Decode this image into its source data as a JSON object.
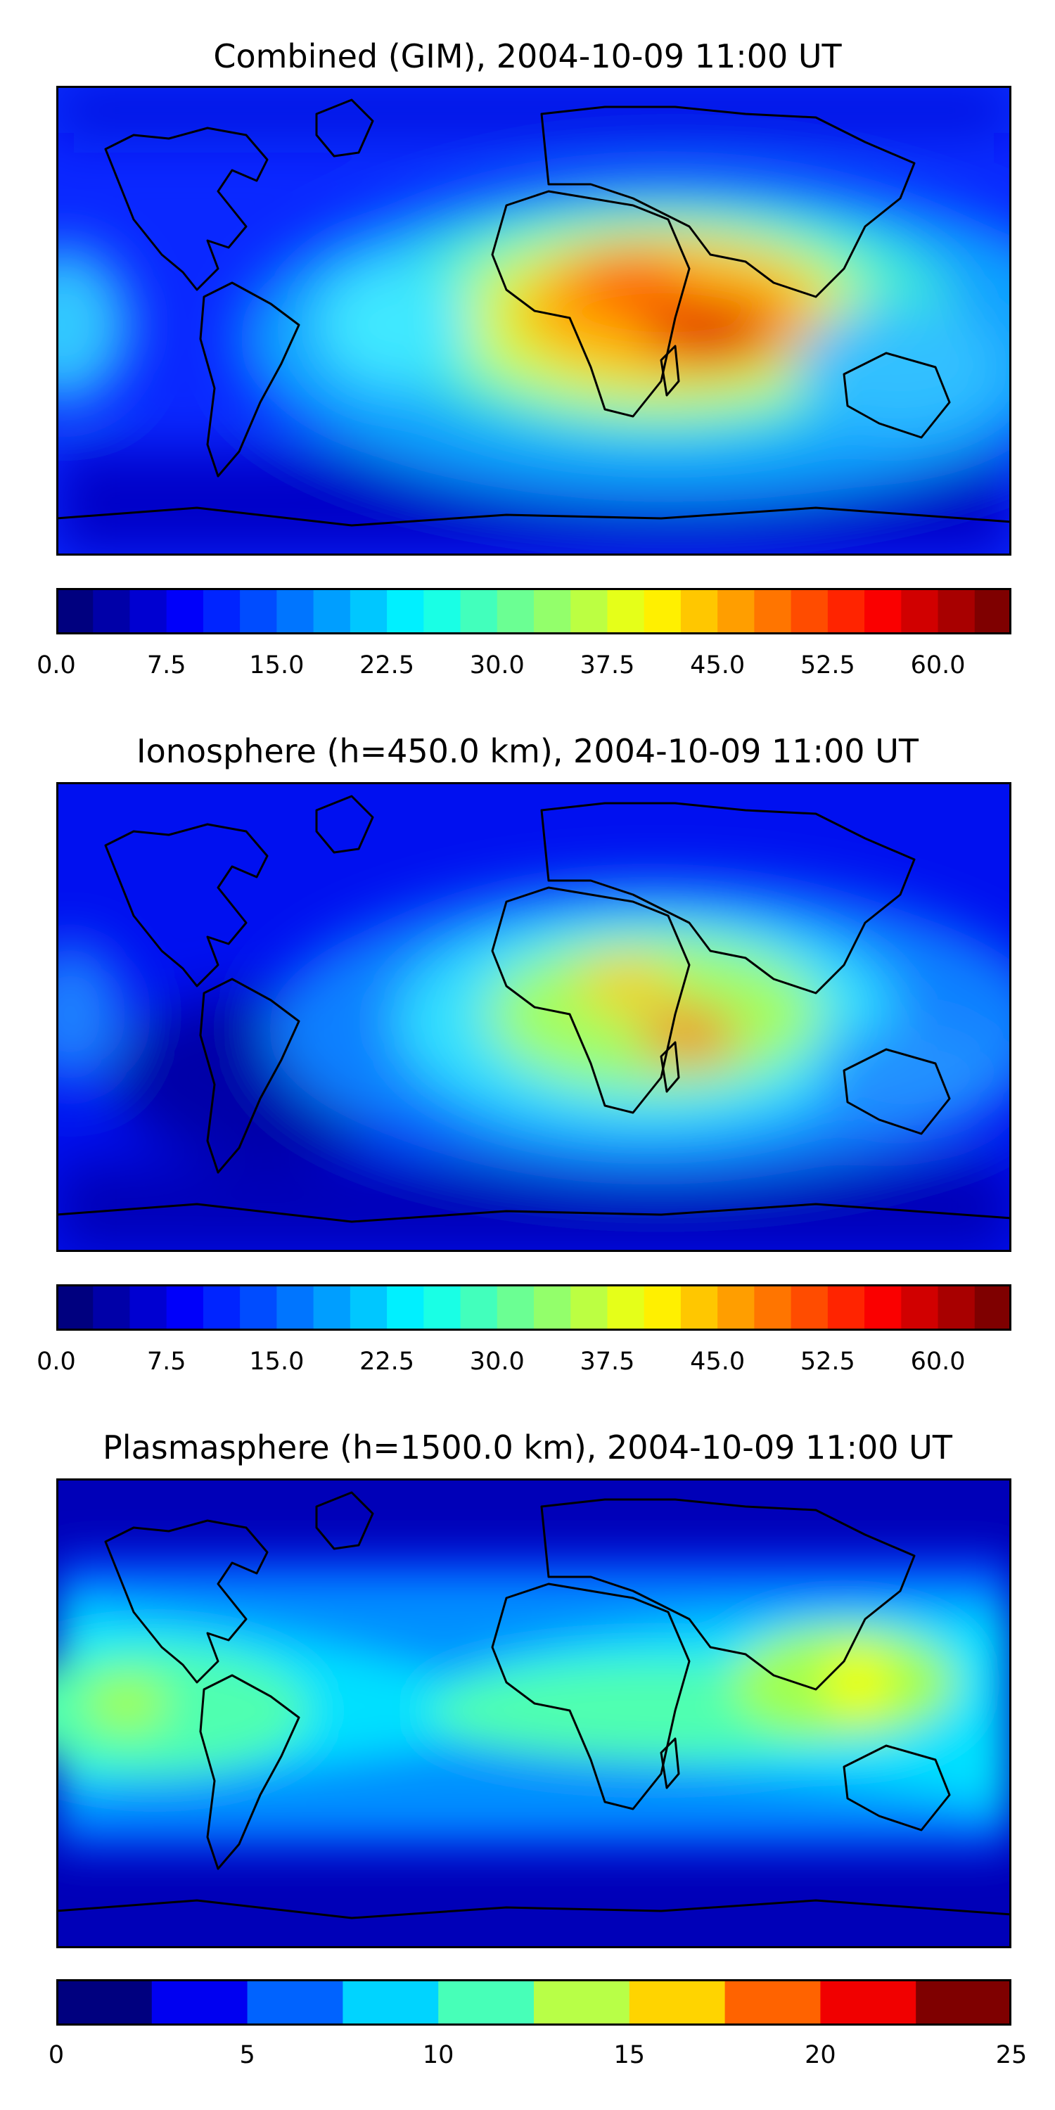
{
  "panels": [
    {
      "title": "Combined (GIM), 2004-10-09 11:00 UT",
      "colorbar": {
        "min": 0,
        "max": 65,
        "levels": 26,
        "tick_labels": [
          "0.0",
          "7.5",
          "15.0",
          "22.5",
          "30.0",
          "37.5",
          "45.0",
          "52.5",
          "60.0"
        ]
      }
    },
    {
      "title": "Ionosphere  (h=450.0 km), 2004-10-09 11:00 UT",
      "colorbar": {
        "min": 0,
        "max": 65,
        "levels": 26,
        "tick_labels": [
          "0.0",
          "7.5",
          "15.0",
          "22.5",
          "30.0",
          "37.5",
          "45.0",
          "52.5",
          "60.0"
        ]
      }
    },
    {
      "title": "Plasmasphere (h=1500.0 km), 2004-10-09 11:00 UT",
      "colorbar": {
        "min": 0,
        "max": 25,
        "levels": 10,
        "tick_labels": [
          "0",
          "5",
          "10",
          "15",
          "20",
          "25"
        ]
      }
    }
  ],
  "colors": {
    "jet_stops": [
      "#00007f",
      "#0000ff",
      "#007fff",
      "#00ffff",
      "#7fff7f",
      "#ffff00",
      "#ff7f00",
      "#ff0000",
      "#7f0000"
    ],
    "coastline": "#000000",
    "background_low": "#1a1aff"
  }
}
